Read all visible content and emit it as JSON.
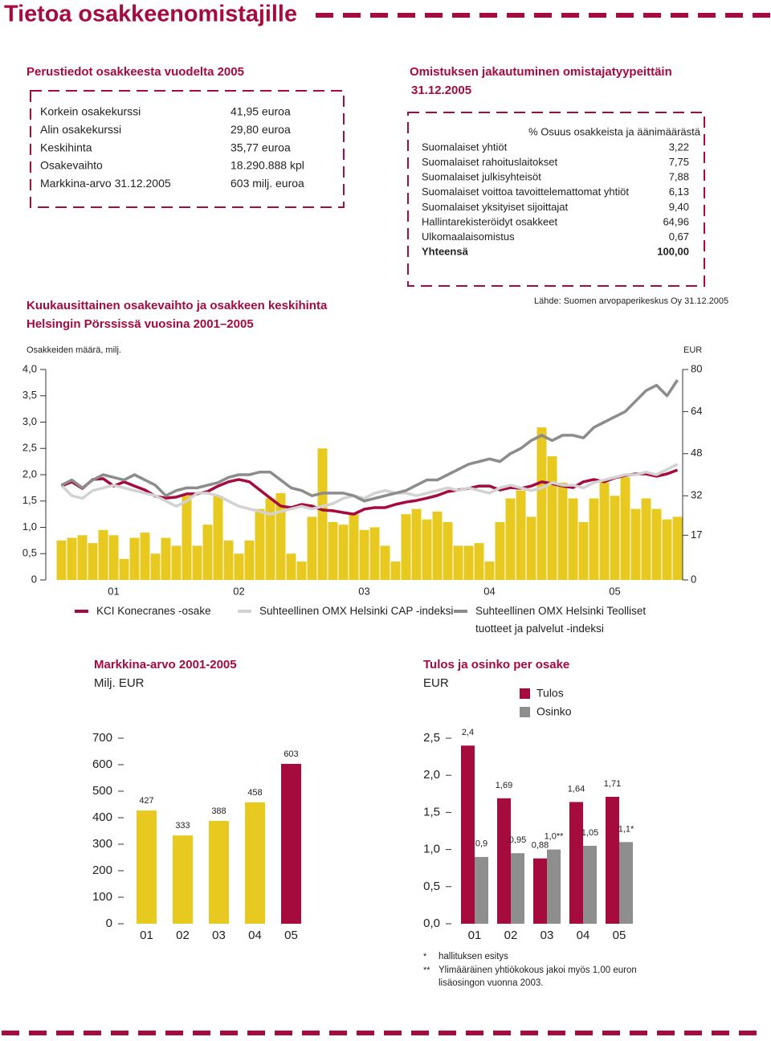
{
  "title": "Tietoa osakkeenomistajille",
  "basic_info": {
    "heading": "Perustiedot osakkeesta vuodelta 2005",
    "rows": [
      [
        "Korkein osakekurssi",
        "41,95 euroa"
      ],
      [
        "Alin osakekurssi",
        "29,80 euroa"
      ],
      [
        "Keskihinta",
        "35,77 euroa"
      ],
      [
        "Osakevaihto",
        "18.290.888 kpl"
      ],
      [
        "Markkina-arvo 31.12.2005",
        "603 milj. euroa"
      ]
    ]
  },
  "ownership": {
    "heading": "Omistuksen jakautuminen omistajatyypeittäin",
    "date": "31.12.2005",
    "column_header": "% Osuus osakkeista ja äänimäärästä",
    "rows": [
      [
        "Suomalaiset yhtiöt",
        "3,22"
      ],
      [
        "Suomalaiset rahoituslaitokset",
        "7,75"
      ],
      [
        "Suomalaiset julkisyhteisöt",
        "7,88"
      ],
      [
        "Suomalaiset voittoa tavoittelemattomat yhtiöt",
        "6,13"
      ],
      [
        "Suomalaiset yksityiset sijoittajat",
        "9,40"
      ],
      [
        "Hallintarekisteröidyt osakkeet",
        "64,96"
      ],
      [
        "Ulkomaalaisomistus",
        "0,67"
      ]
    ],
    "total": [
      "Yhteensä",
      "100,00"
    ],
    "source": "Lähde: Suomen arvopaperikeskus Oy 31.12.2005"
  },
  "chart_data": [
    {
      "type": "combo",
      "title": [
        "Kuukausittainen osakevaihto ja osakkeen keskihinta",
        "Helsingin Pörssissä vuosina 2001–2005"
      ],
      "ylabel": "Osakkeiden määrä, milj.",
      "y2label": "EUR",
      "categories": [
        null,
        null,
        null,
        null,
        null,
        "01",
        null,
        null,
        null,
        null,
        null,
        null,
        null,
        null,
        null,
        null,
        null,
        "02",
        null,
        null,
        null,
        null,
        null,
        null,
        null,
        null,
        null,
        null,
        null,
        "03",
        null,
        null,
        null,
        null,
        null,
        null,
        null,
        null,
        null,
        null,
        null,
        "04",
        null,
        null,
        null,
        null,
        null,
        null,
        null,
        null,
        null,
        null,
        null,
        "05",
        null,
        null,
        null,
        null,
        null,
        null
      ],
      "ylim": [
        0,
        4
      ],
      "yticks": [
        0,
        {
          "value": 0.5,
          "label": "0,5"
        },
        {
          "value": 1,
          "label": "1,0"
        },
        {
          "value": 1.5,
          "label": "1,5"
        },
        {
          "value": 2,
          "label": "2,0"
        },
        {
          "value": 2.5,
          "label": "2,5"
        },
        {
          "value": 3,
          "label": "3,0"
        },
        {
          "value": 3.5,
          "label": "3,5"
        },
        {
          "value": 4,
          "label": "4,0"
        }
      ],
      "y2lim": [
        0,
        80
      ],
      "y2ticks": [
        0,
        17,
        32,
        48,
        64,
        80
      ],
      "series": [
        {
          "type": "bar",
          "color": "#e8c91f",
          "values": [
            0.75,
            0.8,
            0.85,
            0.7,
            0.95,
            0.85,
            0.4,
            0.8,
            0.9,
            0.5,
            0.8,
            0.65,
            1.6,
            0.65,
            1.05,
            1.6,
            0.75,
            0.5,
            0.75,
            1.35,
            1.55,
            1.65,
            0.5,
            0.35,
            1.2,
            2.5,
            1.1,
            1.05,
            1.25,
            0.95,
            1.0,
            0.65,
            0.35,
            1.25,
            1.35,
            1.15,
            1.3,
            1.1,
            0.65,
            0.65,
            0.7,
            0.35,
            1.1,
            1.55,
            1.7,
            1.2,
            2.9,
            2.35,
            1.85,
            1.55,
            1.1,
            1.55,
            1.85,
            1.6,
            1.95,
            1.35,
            1.55,
            1.35,
            1.15,
            1.2
          ]
        },
        {
          "type": "line",
          "name": "KCI Konecranes -osake",
          "color": "#a50b3d",
          "axis": "y2",
          "values": [
            35.7,
            37.3,
            34.8,
            38.2,
            38.5,
            35.7,
            37.3,
            35.7,
            34.2,
            31.8,
            31.1,
            31.5,
            32.7,
            32.7,
            33.6,
            35.7,
            37.3,
            38.2,
            37.3,
            34.2,
            31.1,
            28.1,
            27.5,
            28.7,
            28.1,
            26.6,
            26.3,
            25.6,
            25.0,
            26.9,
            27.5,
            27.5,
            28.7,
            29.6,
            30.2,
            31.1,
            32.1,
            33.6,
            34.2,
            34.8,
            35.7,
            35.7,
            34.2,
            35.1,
            34.8,
            35.7,
            37.3,
            36.6,
            35.7,
            35.1,
            37.3,
            38.2,
            37.3,
            38.8,
            39.7,
            40.3,
            40.3,
            39.4,
            40.3,
            41.8
          ]
        },
        {
          "type": "line",
          "name": "Suhteellinen OMX Helsinki CAP -indeksi",
          "color": "#d2d2d2",
          "axis": "y2",
          "values": [
            36,
            32,
            31,
            34,
            35,
            36,
            35,
            34,
            33,
            32,
            30,
            28,
            30,
            33,
            33,
            32,
            30,
            28,
            27,
            26,
            25,
            26,
            27,
            28,
            27,
            28,
            29,
            31,
            32,
            31,
            33,
            34,
            33,
            33,
            32,
            33,
            34,
            35,
            34,
            35,
            34,
            33,
            35,
            36,
            35,
            34,
            35,
            37,
            36,
            36,
            35,
            37,
            38,
            39,
            40,
            40,
            41,
            40,
            42,
            44
          ]
        },
        {
          "type": "line",
          "name": "Suhteellinen OMX Helsinki Teolliset tuotteet ja palvelut -indeksi",
          "color": "#8c8c8c",
          "axis": "y2",
          "values": [
            36,
            38,
            35,
            38,
            40,
            39,
            38,
            40,
            38,
            36,
            32,
            34,
            35,
            35,
            36,
            37,
            39,
            40,
            40,
            41,
            41,
            38,
            35,
            34,
            32,
            33,
            33,
            33,
            32,
            30,
            31,
            32,
            33,
            34,
            36,
            38,
            38,
            40,
            42,
            44,
            45,
            46,
            45,
            48,
            50,
            53,
            55,
            53,
            55,
            55,
            54,
            58,
            60,
            62,
            64,
            68,
            72,
            74,
            70,
            76
          ]
        }
      ]
    },
    {
      "type": "bar",
      "title": "Markkina-arvo 2001-2005",
      "subtitle": "Milj. EUR",
      "categories": [
        "01",
        "02",
        "03",
        "04",
        "05"
      ],
      "ylim": [
        0,
        700
      ],
      "yticks": [
        0,
        100,
        200,
        300,
        400,
        500,
        600,
        700
      ],
      "series": [
        {
          "colors": [
            "#e8c91f",
            "#e8c91f",
            "#e8c91f",
            "#e8c91f",
            "#a50b3d"
          ],
          "values": [
            427,
            333,
            388,
            458,
            603
          ]
        }
      ]
    },
    {
      "type": "bar",
      "title": "Tulos ja osinko per osake",
      "subtitle": "EUR",
      "categories": [
        "01",
        "02",
        "03",
        "04",
        "05"
      ],
      "ylim": [
        0,
        2.5
      ],
      "yticks": [
        {
          "value": 0,
          "label": "0,0"
        },
        {
          "value": 0.5,
          "label": "0,5"
        },
        {
          "value": 1,
          "label": "1,0"
        },
        {
          "value": 1.5,
          "label": "1,5"
        },
        {
          "value": 2,
          "label": "2,0"
        },
        {
          "value": 2.5,
          "label": "2,5"
        }
      ],
      "series": [
        {
          "name": "Tulos",
          "color": "#a50b3d",
          "values": [
            2.4,
            1.69,
            0.88,
            1.64,
            1.71
          ],
          "value_labels": [
            "2,4",
            "1,69",
            "0,88",
            "1,64",
            "1,71"
          ]
        },
        {
          "name": "Osinko",
          "color": "#8e8e8e",
          "values": [
            0.9,
            0.95,
            1.0,
            1.05,
            1.1
          ],
          "value_labels": [
            "0,9",
            "0,95",
            "1,0**",
            "1,05",
            "1,1*"
          ]
        }
      ],
      "notes": [
        {
          "mark": "*",
          "text": "hallituksen esitys"
        },
        {
          "mark": "**",
          "text": "Ylimääräinen yhtiökokous jakoi myös 1,00 euron lisäosingon vuonna 2003."
        }
      ]
    }
  ]
}
